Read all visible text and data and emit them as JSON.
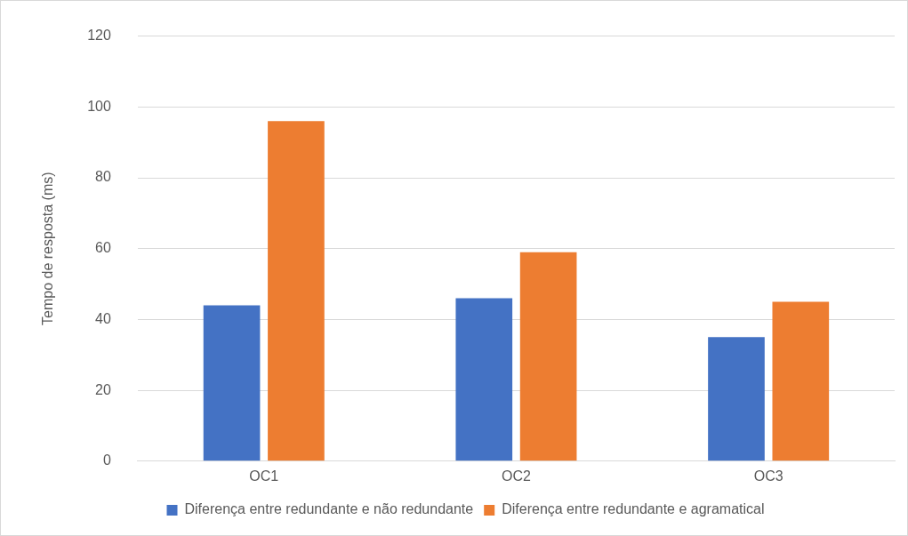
{
  "chart_data": {
    "type": "bar",
    "ylabel": "Tempo de resposta (ms)",
    "categories": [
      "OC1",
      "OC2",
      "OC3"
    ],
    "series": [
      {
        "name": "Diferença entre redundante e não redundante",
        "color": "#4472c4",
        "values": [
          44,
          46,
          35
        ]
      },
      {
        "name": "Diferença entre redundante e agramatical",
        "color": "#ed7d31",
        "values": [
          96,
          59,
          45
        ]
      }
    ],
    "ylim": [
      0,
      120
    ],
    "yticks": [
      0,
      20,
      40,
      60,
      80,
      100,
      120
    ],
    "grid": "y",
    "legend": "bottom"
  }
}
